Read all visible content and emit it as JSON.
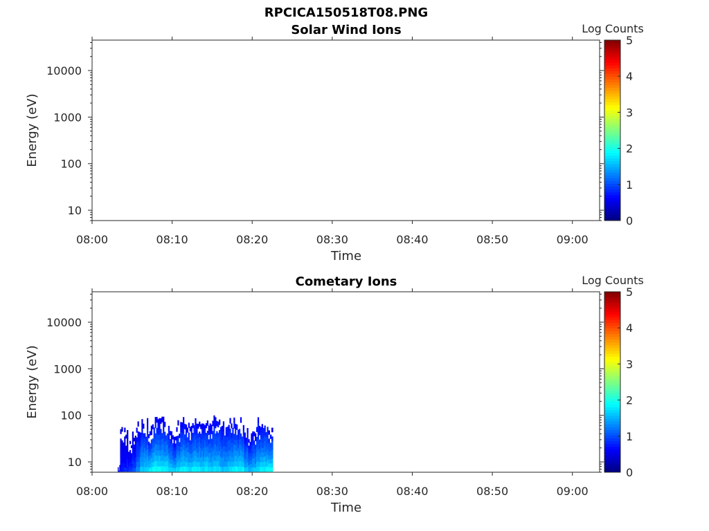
{
  "figure": {
    "title": "RPCICA150518T08.PNG"
  },
  "chart_data": [
    {
      "type": "heatmap",
      "title": "Solar Wind Ions",
      "xlabel": "Time",
      "ylabel": "Energy (eV)",
      "x_ticks": [
        "08:00",
        "08:10",
        "08:20",
        "08:30",
        "08:40",
        "08:50",
        "09:00"
      ],
      "xlim_minutes": [
        0,
        63.4
      ],
      "y_scale": "log",
      "ylim": [
        6,
        45000
      ],
      "y_ticks": [
        {
          "value": 10,
          "label": "10"
        },
        {
          "value": 100,
          "label": "100"
        },
        {
          "value": 1000,
          "label": "1000"
        },
        {
          "value": 10000,
          "label": "10000"
        }
      ],
      "colorbar": {
        "label": "Log Counts",
        "min": 0,
        "max": 5,
        "ticks": [
          "0",
          "1",
          "2",
          "3",
          "4",
          "5"
        ],
        "colormap": "jet"
      },
      "data": []
    },
    {
      "type": "heatmap",
      "title": "Cometary Ions",
      "xlabel": "Time",
      "ylabel": "Energy (eV)",
      "x_ticks": [
        "08:00",
        "08:10",
        "08:20",
        "08:30",
        "08:40",
        "08:50",
        "09:00"
      ],
      "xlim_minutes": [
        0,
        63.4
      ],
      "y_scale": "log",
      "ylim": [
        6,
        45000
      ],
      "y_ticks": [
        {
          "value": 10,
          "label": "10"
        },
        {
          "value": 100,
          "label": "100"
        },
        {
          "value": 1000,
          "label": "1000"
        },
        {
          "value": 10000,
          "label": "10000"
        }
      ],
      "colorbar": {
        "label": "Log Counts",
        "min": 0,
        "max": 5,
        "ticks": [
          "0",
          "1",
          "2",
          "3",
          "4",
          "5"
        ],
        "colormap": "jet"
      },
      "data": [
        {
          "t_start": 3.2,
          "t_end": 3.5,
          "e_max": 8,
          "level_low": 0.5,
          "level_high": 0.8
        },
        {
          "t_start": 3.5,
          "t_end": 4.0,
          "e_max": 60,
          "level_low": 0.4,
          "level_high": 0.7
        },
        {
          "t_start": 4.0,
          "t_end": 4.5,
          "e_max": 45,
          "level_low": 0.4,
          "level_high": 0.8
        },
        {
          "t_start": 4.5,
          "t_end": 5.0,
          "e_max": 25,
          "level_low": 0.4,
          "level_high": 0.9
        },
        {
          "t_start": 5.0,
          "t_end": 5.5,
          "e_max": 40,
          "level_low": 0.4,
          "level_high": 1.0
        },
        {
          "t_start": 5.5,
          "t_end": 6.0,
          "e_max": 60,
          "level_low": 0.5,
          "level_high": 1.3
        },
        {
          "t_start": 6.0,
          "t_end": 6.5,
          "e_max": 80,
          "level_low": 0.6,
          "level_high": 1.6
        },
        {
          "t_start": 6.5,
          "t_end": 7.0,
          "e_max": 70,
          "level_low": 0.6,
          "level_high": 1.7
        },
        {
          "t_start": 7.0,
          "t_end": 7.5,
          "e_max": 50,
          "level_low": 0.5,
          "level_high": 1.8
        },
        {
          "t_start": 7.5,
          "t_end": 8.0,
          "e_max": 80,
          "level_low": 0.6,
          "level_high": 1.9
        },
        {
          "t_start": 8.0,
          "t_end": 8.5,
          "e_max": 80,
          "level_low": 0.6,
          "level_high": 1.9
        },
        {
          "t_start": 8.5,
          "t_end": 9.0,
          "e_max": 75,
          "level_low": 0.6,
          "level_high": 1.8
        },
        {
          "t_start": 9.0,
          "t_end": 9.5,
          "e_max": 80,
          "level_low": 0.6,
          "level_high": 1.8
        },
        {
          "t_start": 9.5,
          "t_end": 10.0,
          "e_max": 60,
          "level_low": 0.6,
          "level_high": 1.7
        },
        {
          "t_start": 10.0,
          "t_end": 10.5,
          "e_max": 45,
          "level_low": 0.5,
          "level_high": 1.6
        },
        {
          "t_start": 10.5,
          "t_end": 11.0,
          "e_max": 65,
          "level_low": 0.5,
          "level_high": 1.7
        },
        {
          "t_start": 11.0,
          "t_end": 11.5,
          "e_max": 80,
          "level_low": 0.6,
          "level_high": 1.8
        },
        {
          "t_start": 11.5,
          "t_end": 12.0,
          "e_max": 80,
          "level_low": 0.6,
          "level_high": 1.8
        },
        {
          "t_start": 12.0,
          "t_end": 12.5,
          "e_max": 70,
          "level_low": 0.6,
          "level_high": 1.7
        },
        {
          "t_start": 12.5,
          "t_end": 13.0,
          "e_max": 80,
          "level_low": 0.6,
          "level_high": 1.8
        },
        {
          "t_start": 13.0,
          "t_end": 13.5,
          "e_max": 80,
          "level_low": 0.6,
          "level_high": 1.8
        },
        {
          "t_start": 13.5,
          "t_end": 14.0,
          "e_max": 75,
          "level_low": 0.6,
          "level_high": 1.7
        },
        {
          "t_start": 14.0,
          "t_end": 14.5,
          "e_max": 80,
          "level_low": 0.6,
          "level_high": 1.8
        },
        {
          "t_start": 14.5,
          "t_end": 15.0,
          "e_max": 70,
          "level_low": 0.6,
          "level_high": 1.7
        },
        {
          "t_start": 15.0,
          "t_end": 15.5,
          "e_max": 80,
          "level_low": 0.6,
          "level_high": 1.7
        },
        {
          "t_start": 15.5,
          "t_end": 16.0,
          "e_max": 80,
          "level_low": 0.6,
          "level_high": 1.7
        },
        {
          "t_start": 16.0,
          "t_end": 16.5,
          "e_max": 75,
          "level_low": 0.6,
          "level_high": 1.6
        },
        {
          "t_start": 16.5,
          "t_end": 17.0,
          "e_max": 70,
          "level_low": 0.6,
          "level_high": 1.6
        },
        {
          "t_start": 17.0,
          "t_end": 17.5,
          "e_max": 80,
          "level_low": 0.6,
          "level_high": 1.7
        },
        {
          "t_start": 17.5,
          "t_end": 18.0,
          "e_max": 80,
          "level_low": 0.6,
          "level_high": 1.8
        },
        {
          "t_start": 18.0,
          "t_end": 18.5,
          "e_max": 80,
          "level_low": 0.6,
          "level_high": 1.8
        },
        {
          "t_start": 18.5,
          "t_end": 19.0,
          "e_max": 80,
          "level_low": 0.6,
          "level_high": 1.8
        },
        {
          "t_start": 19.0,
          "t_end": 19.5,
          "e_max": 55,
          "level_low": 0.5,
          "level_high": 1.6
        },
        {
          "t_start": 19.5,
          "t_end": 20.0,
          "e_max": 40,
          "level_low": 0.5,
          "level_high": 1.5
        },
        {
          "t_start": 20.0,
          "t_end": 20.5,
          "e_max": 55,
          "level_low": 0.5,
          "level_high": 1.6
        },
        {
          "t_start": 20.5,
          "t_end": 21.0,
          "e_max": 75,
          "level_low": 0.6,
          "level_high": 1.7
        },
        {
          "t_start": 21.0,
          "t_end": 21.5,
          "e_max": 80,
          "level_low": 0.6,
          "level_high": 1.8
        },
        {
          "t_start": 21.5,
          "t_end": 22.0,
          "e_max": 80,
          "level_low": 0.6,
          "level_high": 1.8
        },
        {
          "t_start": 22.0,
          "t_end": 22.6,
          "e_max": 45,
          "level_low": 0.6,
          "level_high": 1.9
        }
      ]
    }
  ]
}
